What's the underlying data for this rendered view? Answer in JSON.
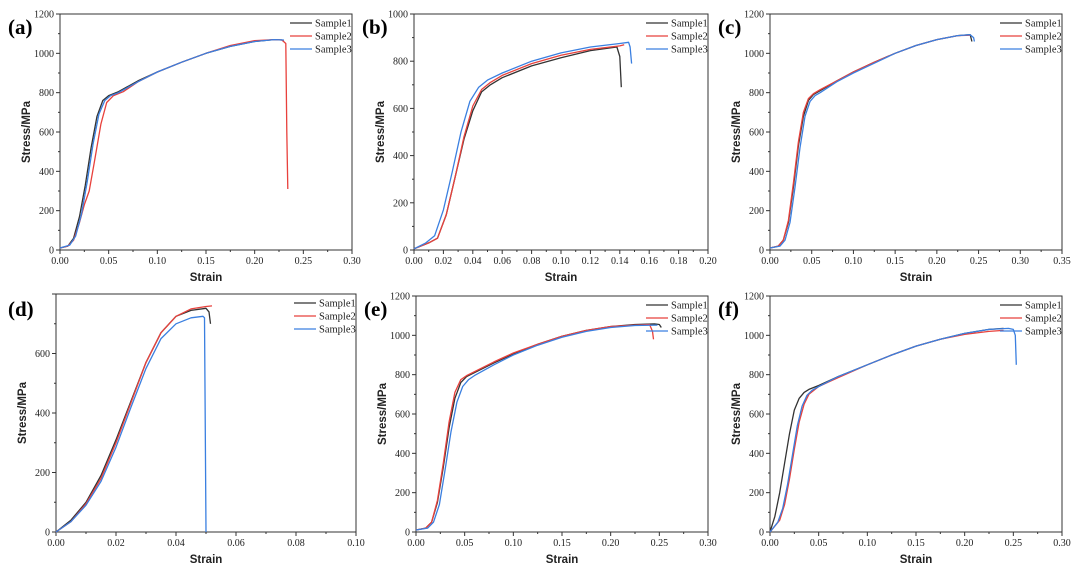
{
  "colors": {
    "Sample1": "#333333",
    "Sample2": "#e8413c",
    "Sample3": "#3a7fe0"
  },
  "chart_data": [
    {
      "type": "line",
      "panel_label": "(a)",
      "xlabel": "Strain",
      "ylabel": "Stress/MPa",
      "xlim": [
        0,
        0.3
      ],
      "ylim": [
        0,
        1200
      ],
      "xticks": [
        "0.00",
        "0.05",
        "0.10",
        "0.15",
        "0.20",
        "0.25",
        "0.30"
      ],
      "yticks": [
        "0",
        "200",
        "400",
        "600",
        "800",
        "1000",
        "1200"
      ],
      "legend_position": "top-right",
      "series": [
        {
          "name": "Sample1",
          "x": [
            0,
            0.008,
            0.014,
            0.02,
            0.026,
            0.032,
            0.038,
            0.044,
            0.05,
            0.06,
            0.08,
            0.1,
            0.125,
            0.15,
            0.175,
            0.2,
            0.22,
            0.228,
            0.23
          ],
          "y": [
            10,
            20,
            60,
            170,
            330,
            520,
            680,
            760,
            785,
            805,
            860,
            905,
            955,
            1000,
            1035,
            1060,
            1070,
            1068,
            1060
          ]
        },
        {
          "name": "Sample2",
          "x": [
            0,
            0.008,
            0.014,
            0.02,
            0.025,
            0.03,
            0.035,
            0.042,
            0.048,
            0.055,
            0.065,
            0.08,
            0.1,
            0.125,
            0.15,
            0.175,
            0.2,
            0.22,
            0.228,
            0.232,
            0.233,
            0.234
          ],
          "y": [
            10,
            20,
            50,
            140,
            230,
            300,
            440,
            640,
            750,
            785,
            805,
            855,
            905,
            955,
            1000,
            1040,
            1065,
            1070,
            1068,
            1050,
            600,
            310
          ]
        },
        {
          "name": "Sample3",
          "x": [
            0,
            0.01,
            0.016,
            0.022,
            0.028,
            0.034,
            0.04,
            0.046,
            0.052,
            0.06,
            0.08,
            0.1,
            0.125,
            0.15,
            0.175,
            0.2,
            0.22,
            0.23
          ],
          "y": [
            10,
            25,
            70,
            180,
            350,
            540,
            690,
            760,
            785,
            800,
            855,
            905,
            955,
            1000,
            1035,
            1060,
            1070,
            1068
          ]
        }
      ]
    },
    {
      "type": "line",
      "panel_label": "(b)",
      "xlabel": "Strain",
      "ylabel": "Stress/MPa",
      "xlim": [
        0,
        0.2
      ],
      "ylim": [
        0,
        1000
      ],
      "xticks": [
        "0.00",
        "0.02",
        "0.04",
        "0.06",
        "0.08",
        "0.10",
        "0.12",
        "0.14",
        "0.16",
        "0.18",
        "0.20"
      ],
      "yticks": [
        "0",
        "200",
        "400",
        "600",
        "800",
        "1000"
      ],
      "legend_position": "top-right",
      "series": [
        {
          "name": "Sample1",
          "x": [
            0,
            0.01,
            0.016,
            0.022,
            0.028,
            0.034,
            0.04,
            0.046,
            0.052,
            0.06,
            0.08,
            0.1,
            0.12,
            0.138,
            0.14,
            0.141
          ],
          "y": [
            5,
            30,
            50,
            150,
            310,
            470,
            590,
            670,
            700,
            730,
            780,
            815,
            845,
            860,
            820,
            690
          ]
        },
        {
          "name": "Sample2",
          "x": [
            0,
            0.01,
            0.016,
            0.022,
            0.028,
            0.034,
            0.04,
            0.046,
            0.052,
            0.06,
            0.08,
            0.1,
            0.12,
            0.14,
            0.143
          ],
          "y": [
            5,
            30,
            50,
            150,
            310,
            480,
            610,
            680,
            710,
            740,
            790,
            825,
            850,
            865,
            870
          ]
        },
        {
          "name": "Sample3",
          "x": [
            0,
            0.008,
            0.014,
            0.02,
            0.026,
            0.032,
            0.038,
            0.044,
            0.05,
            0.06,
            0.08,
            0.1,
            0.12,
            0.14,
            0.146,
            0.147,
            0.148
          ],
          "y": [
            5,
            30,
            60,
            170,
            330,
            500,
            630,
            690,
            720,
            750,
            800,
            835,
            860,
            875,
            880,
            860,
            790
          ]
        }
      ]
    },
    {
      "type": "line",
      "panel_label": "(c)",
      "xlabel": "Strain",
      "ylabel": "Stress/MPa",
      "xlim": [
        0,
        0.35
      ],
      "ylim": [
        0,
        1200
      ],
      "xticks": [
        "0.00",
        "0.05",
        "0.10",
        "0.15",
        "0.20",
        "0.25",
        "0.30",
        "0.35"
      ],
      "yticks": [
        "0",
        "200",
        "400",
        "600",
        "800",
        "1000",
        "1200"
      ],
      "legend_position": "top-right",
      "series": [
        {
          "name": "Sample1",
          "x": [
            0,
            0.01,
            0.016,
            0.022,
            0.028,
            0.034,
            0.04,
            0.046,
            0.052,
            0.06,
            0.08,
            0.1,
            0.125,
            0.15,
            0.175,
            0.2,
            0.225,
            0.24,
            0.242
          ],
          "y": [
            10,
            20,
            50,
            140,
            320,
            530,
            680,
            760,
            790,
            810,
            860,
            905,
            955,
            1000,
            1040,
            1070,
            1090,
            1095,
            1060
          ]
        },
        {
          "name": "Sample2",
          "x": [
            0,
            0.01,
            0.016,
            0.022,
            0.028,
            0.034,
            0.04,
            0.046,
            0.052,
            0.06,
            0.08,
            0.1,
            0.125,
            0.15,
            0.175,
            0.2,
            0.225,
            0.24
          ],
          "y": [
            10,
            20,
            50,
            150,
            340,
            550,
            700,
            770,
            795,
            815,
            860,
            905,
            955,
            1000,
            1040,
            1070,
            1090,
            1092
          ]
        },
        {
          "name": "Sample3",
          "x": [
            0,
            0.012,
            0.018,
            0.024,
            0.03,
            0.036,
            0.042,
            0.048,
            0.054,
            0.06,
            0.08,
            0.1,
            0.125,
            0.15,
            0.175,
            0.2,
            0.225,
            0.24,
            0.244,
            0.245
          ],
          "y": [
            10,
            20,
            50,
            140,
            320,
            520,
            680,
            755,
            785,
            800,
            855,
            900,
            950,
            1000,
            1040,
            1070,
            1090,
            1095,
            1080,
            1060
          ]
        }
      ]
    },
    {
      "type": "line",
      "panel_label": "(d)",
      "xlabel": "Strain",
      "ylabel": "Stress/MPa",
      "xlim": [
        0,
        0.1
      ],
      "ylim": [
        0,
        800
      ],
      "xticks": [
        "0.00",
        "0.02",
        "0.04",
        "0.06",
        "0.08",
        "0.10"
      ],
      "yticks": [
        "0",
        "200",
        "400",
        "600",
        ""
      ],
      "legend_position": "top-right",
      "series": [
        {
          "name": "Sample1",
          "x": [
            0,
            0.005,
            0.01,
            0.015,
            0.02,
            0.025,
            0.03,
            0.035,
            0.04,
            0.045,
            0.05,
            0.051,
            0.0515
          ],
          "y": [
            0,
            40,
            100,
            190,
            310,
            440,
            570,
            670,
            725,
            745,
            752,
            740,
            700
          ]
        },
        {
          "name": "Sample2",
          "x": [
            0,
            0.005,
            0.01,
            0.015,
            0.02,
            0.025,
            0.03,
            0.035,
            0.04,
            0.045,
            0.05,
            0.052
          ],
          "y": [
            0,
            35,
            95,
            180,
            300,
            435,
            570,
            670,
            725,
            750,
            758,
            760
          ]
        },
        {
          "name": "Sample3",
          "x": [
            0,
            0.005,
            0.01,
            0.015,
            0.02,
            0.025,
            0.03,
            0.035,
            0.04,
            0.045,
            0.049,
            0.0495,
            0.05
          ],
          "y": [
            0,
            35,
            90,
            170,
            285,
            420,
            550,
            650,
            700,
            720,
            725,
            720,
            0
          ]
        }
      ]
    },
    {
      "type": "line",
      "panel_label": "(e)",
      "xlabel": "Strain",
      "ylabel": "Stress/MPa",
      "xlim": [
        0,
        0.3
      ],
      "ylim": [
        0,
        1200
      ],
      "xticks": [
        "0.00",
        "0.05",
        "0.10",
        "0.15",
        "0.20",
        "0.25",
        "0.30"
      ],
      "yticks": [
        "0",
        "200",
        "400",
        "600",
        "800",
        "1000",
        "1200"
      ],
      "legend_position": "top-right",
      "series": [
        {
          "name": "Sample1",
          "x": [
            0,
            0.01,
            0.016,
            0.022,
            0.028,
            0.034,
            0.04,
            0.046,
            0.052,
            0.06,
            0.08,
            0.1,
            0.125,
            0.15,
            0.175,
            0.2,
            0.225,
            0.245,
            0.25,
            0.252
          ],
          "y": [
            10,
            20,
            50,
            150,
            330,
            530,
            680,
            760,
            790,
            810,
            860,
            905,
            955,
            995,
            1025,
            1045,
            1055,
            1058,
            1055,
            1040
          ]
        },
        {
          "name": "Sample2",
          "x": [
            0,
            0.01,
            0.016,
            0.022,
            0.028,
            0.034,
            0.04,
            0.046,
            0.052,
            0.06,
            0.08,
            0.1,
            0.125,
            0.15,
            0.175,
            0.2,
            0.225,
            0.24,
            0.243,
            0.244
          ],
          "y": [
            10,
            20,
            50,
            160,
            350,
            560,
            710,
            775,
            795,
            815,
            865,
            910,
            955,
            995,
            1025,
            1045,
            1052,
            1055,
            1020,
            980
          ]
        },
        {
          "name": "Sample3",
          "x": [
            0,
            0.012,
            0.018,
            0.024,
            0.03,
            0.036,
            0.042,
            0.048,
            0.054,
            0.06,
            0.08,
            0.1,
            0.125,
            0.15,
            0.175,
            0.2,
            0.225,
            0.248
          ],
          "y": [
            10,
            20,
            50,
            140,
            320,
            510,
            660,
            740,
            775,
            795,
            850,
            900,
            950,
            990,
            1020,
            1040,
            1050,
            1052
          ]
        }
      ]
    },
    {
      "type": "line",
      "panel_label": "(f)",
      "xlabel": "Strain",
      "ylabel": "Stress/MPa",
      "xlim": [
        0,
        0.3
      ],
      "ylim": [
        0,
        1200
      ],
      "xticks": [
        "0.00",
        "0.05",
        "0.10",
        "0.15",
        "0.20",
        "0.25",
        "0.30"
      ],
      "yticks": [
        "0",
        "200",
        "400",
        "600",
        "800",
        "1000",
        "1200"
      ],
      "legend_position": "top-right",
      "series": [
        {
          "name": "Sample1",
          "x": [
            0,
            0.005,
            0.01,
            0.015,
            0.02,
            0.025,
            0.03,
            0.035,
            0.04,
            0.05,
            0.07,
            0.1,
            0.125,
            0.15,
            0.175,
            0.2,
            0.225,
            0.24
          ],
          "y": [
            0,
            80,
            200,
            350,
            500,
            620,
            680,
            710,
            725,
            745,
            790,
            850,
            900,
            945,
            980,
            1010,
            1030,
            1035
          ]
        },
        {
          "name": "Sample2",
          "x": [
            0,
            0.01,
            0.015,
            0.02,
            0.025,
            0.03,
            0.035,
            0.04,
            0.045,
            0.05,
            0.07,
            0.1,
            0.125,
            0.15,
            0.175,
            0.2,
            0.225,
            0.24
          ],
          "y": [
            0,
            60,
            140,
            270,
            420,
            560,
            650,
            700,
            720,
            740,
            785,
            850,
            900,
            945,
            980,
            1005,
            1020,
            1025
          ]
        },
        {
          "name": "Sample3",
          "x": [
            0,
            0.008,
            0.013,
            0.018,
            0.023,
            0.028,
            0.033,
            0.038,
            0.043,
            0.05,
            0.07,
            0.1,
            0.125,
            0.15,
            0.175,
            0.2,
            0.225,
            0.245,
            0.25,
            0.252,
            0.253
          ],
          "y": [
            0,
            50,
            120,
            240,
            390,
            540,
            640,
            695,
            720,
            740,
            790,
            850,
            900,
            945,
            980,
            1010,
            1030,
            1035,
            1030,
            1000,
            850
          ]
        }
      ]
    }
  ]
}
